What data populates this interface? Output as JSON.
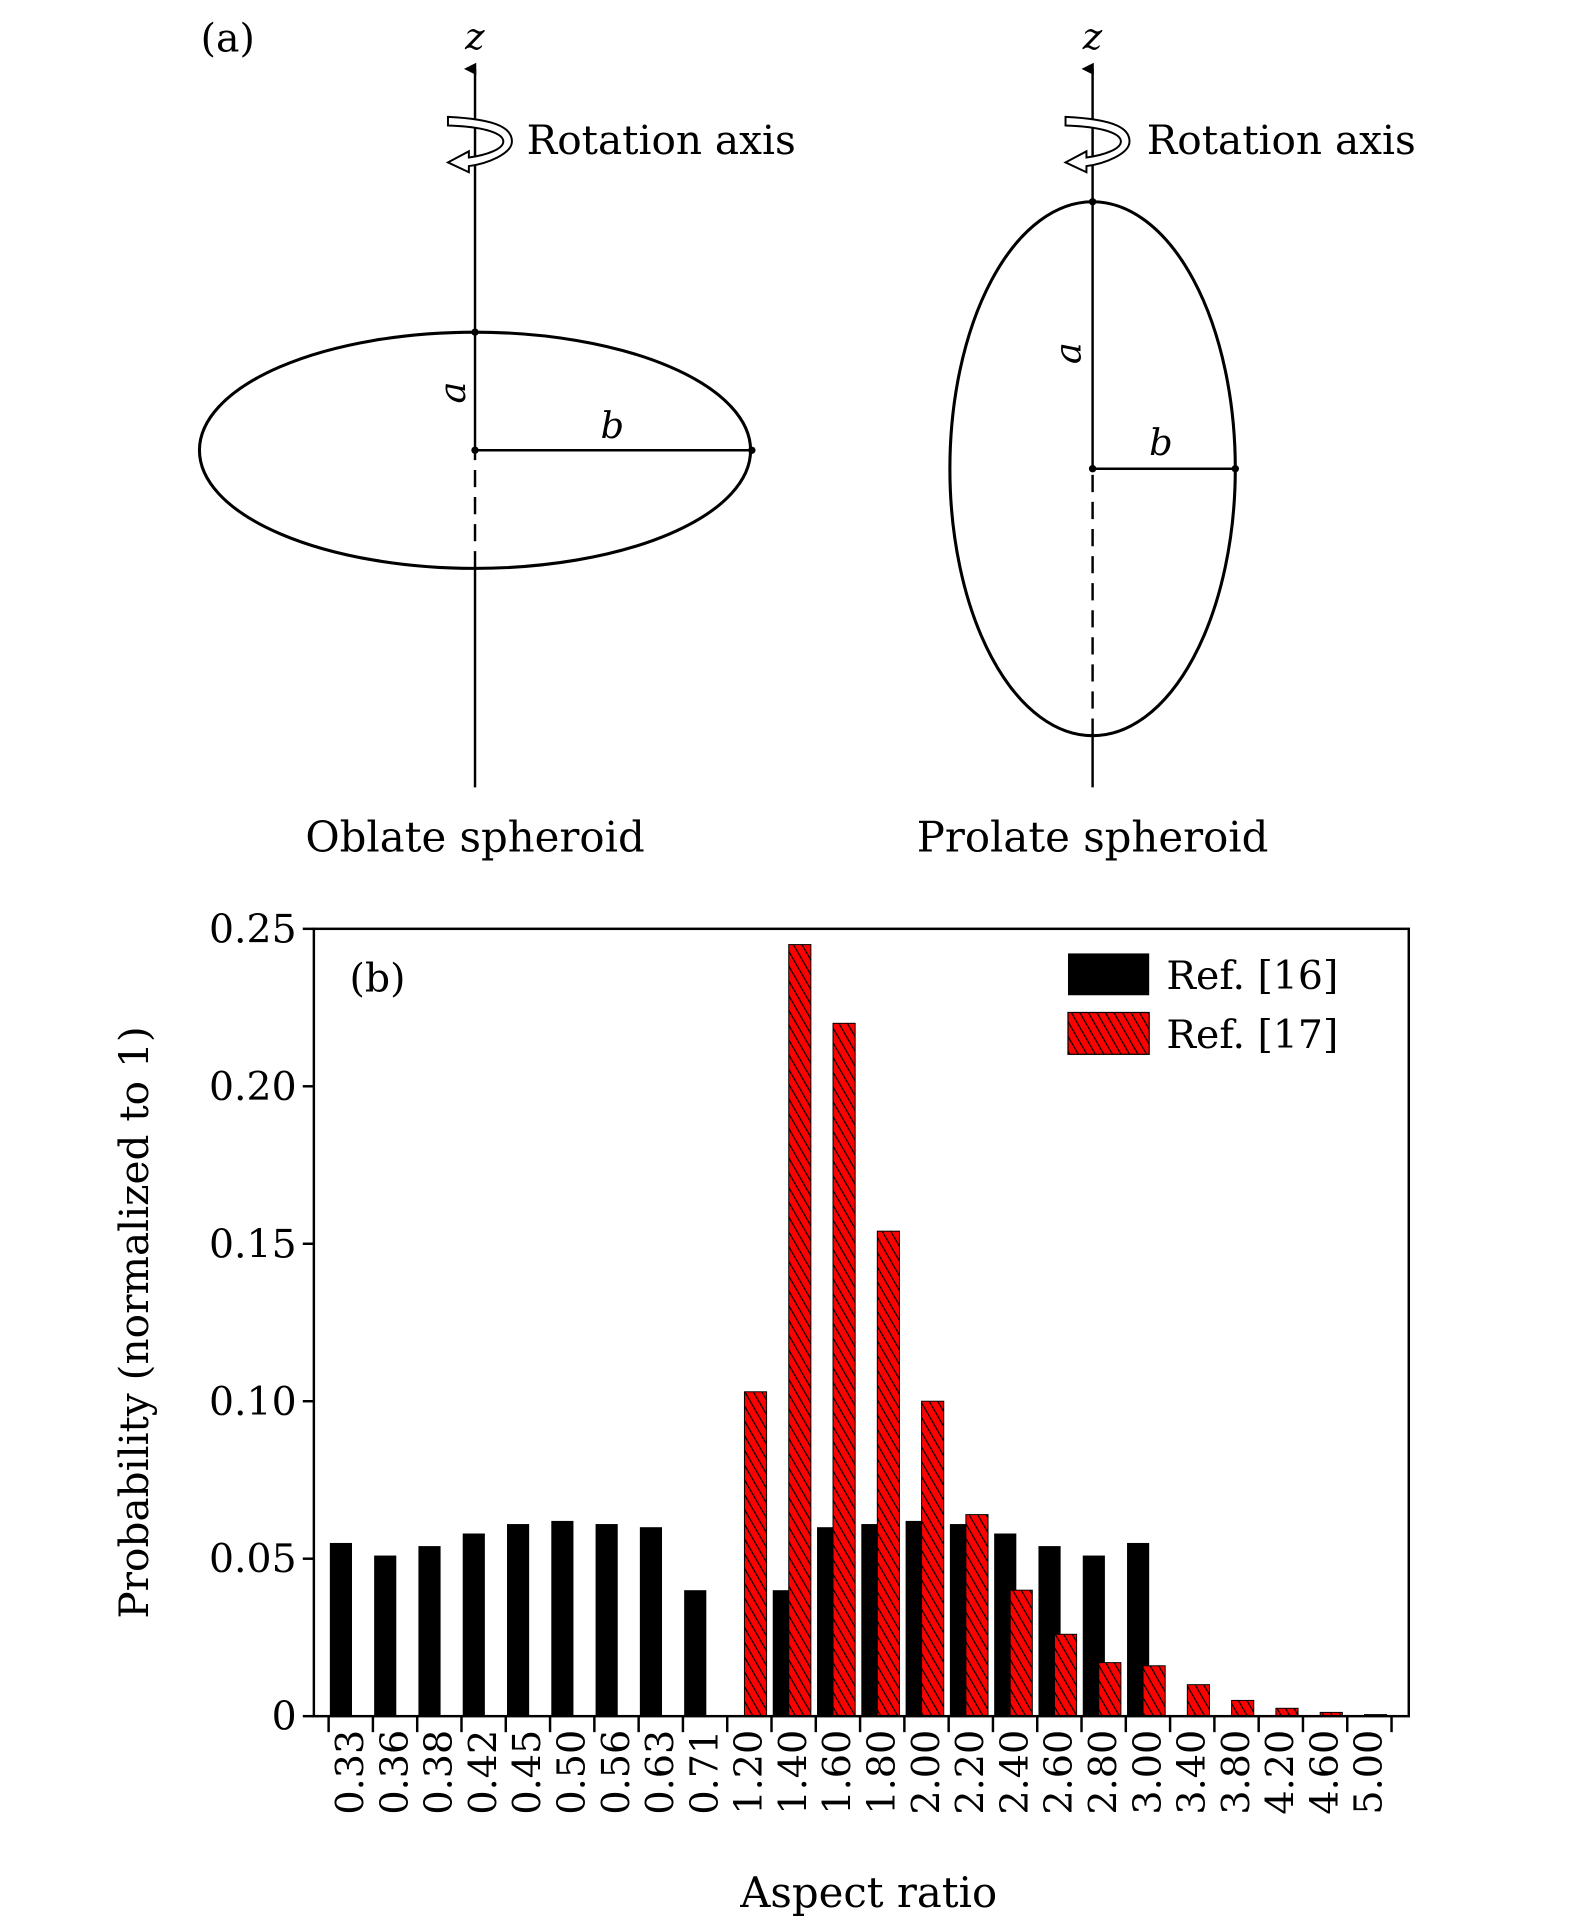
{
  "panel_a": {
    "label": "(a)",
    "oblate": {
      "axis_label": "z",
      "rotation_label": "Rotation axis",
      "a_label": "a",
      "b_label": "b",
      "caption": "Oblate spheroid"
    },
    "prolate": {
      "axis_label": "z",
      "rotation_label": "Rotation axis",
      "a_label": "a",
      "b_label": "b",
      "caption": "Prolate spheroid"
    }
  },
  "chart_data": {
    "type": "bar",
    "panel_label": "(b)",
    "xlabel": "Aspect ratio",
    "ylabel": "Probability (normalized to 1)",
    "ylim": [
      0,
      0.25
    ],
    "yticks": [
      "0",
      "0.05",
      "0.10",
      "0.15",
      "0.20",
      "0.25"
    ],
    "categories": [
      "0.33",
      "0.36",
      "0.38",
      "0.42",
      "0.45",
      "0.50",
      "0.56",
      "0.63",
      "0.71",
      "1.20",
      "1.40",
      "1.60",
      "1.80",
      "2.00",
      "2.20",
      "2.40",
      "2.60",
      "2.80",
      "3.00",
      "3.40",
      "3.80",
      "4.20",
      "4.60",
      "5.00"
    ],
    "legend_position": "top-right",
    "series": [
      {
        "name": "Ref. [16]",
        "color": "#000000",
        "pattern": "solid",
        "values": [
          0.055,
          0.051,
          0.054,
          0.058,
          0.061,
          0.062,
          0.061,
          0.06,
          0.04,
          0,
          0.04,
          0.06,
          0.061,
          0.062,
          0.061,
          0.058,
          0.054,
          0.051,
          0.055,
          0,
          0,
          0,
          0,
          0
        ]
      },
      {
        "name": "Ref. [17]",
        "color": "#ff0000",
        "pattern": "hatched",
        "values": [
          0,
          0,
          0,
          0,
          0,
          0,
          0,
          0,
          0,
          0.103,
          0.245,
          0.22,
          0.154,
          0.1,
          0.064,
          0.04,
          0.026,
          0.017,
          0.016,
          0.01,
          0.005,
          0.0025,
          0.0012,
          0.0005
        ]
      }
    ]
  }
}
